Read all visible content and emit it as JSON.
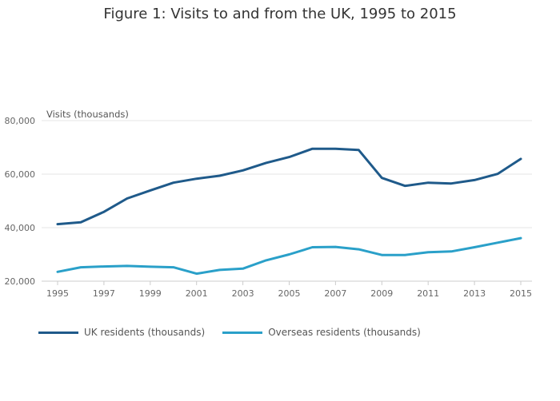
{
  "chart_data": {
    "type": "line",
    "title": "Figure 1: Visits to and from the UK, 1995 to 2015",
    "xlabel": "",
    "ylabel": "Visits (thousands)",
    "x": [
      1995,
      1996,
      1997,
      1998,
      1999,
      2000,
      2001,
      2002,
      2003,
      2004,
      2005,
      2006,
      2007,
      2008,
      2009,
      2010,
      2011,
      2012,
      2013,
      2014,
      2015
    ],
    "xlim": [
      1995,
      2015
    ],
    "ylim": [
      20000,
      80000
    ],
    "x_ticks": [
      1995,
      1997,
      1999,
      2001,
      2003,
      2005,
      2007,
      2009,
      2011,
      2013,
      2015
    ],
    "x_tick_labels": [
      "1995",
      "1997",
      "1999",
      "2001",
      "2003",
      "2005",
      "2007",
      "2009",
      "2011",
      "2013",
      "2015"
    ],
    "y_ticks": [
      20000,
      40000,
      60000,
      80000
    ],
    "y_tick_labels": [
      "20,000",
      "40,000",
      "60,000",
      "80,000"
    ],
    "grid": true,
    "legend_position": "bottom-left",
    "series": [
      {
        "name": "UK residents (thousands)",
        "color": "#1f5a8a",
        "values": [
          41300,
          42000,
          45900,
          50900,
          53900,
          56800,
          58300,
          59400,
          61400,
          64200,
          66400,
          69500,
          69500,
          69000,
          58600,
          55600,
          56800,
          56500,
          57800,
          60100,
          65700
        ]
      },
      {
        "name": "Overseas residents (thousands)",
        "color": "#2aa0c9",
        "values": [
          23500,
          25200,
          25500,
          25700,
          25400,
          25200,
          22800,
          24200,
          24700,
          27800,
          30000,
          32700,
          32800,
          31900,
          29800,
          29800,
          30800,
          31100,
          32700,
          34400,
          36100
        ]
      }
    ]
  }
}
